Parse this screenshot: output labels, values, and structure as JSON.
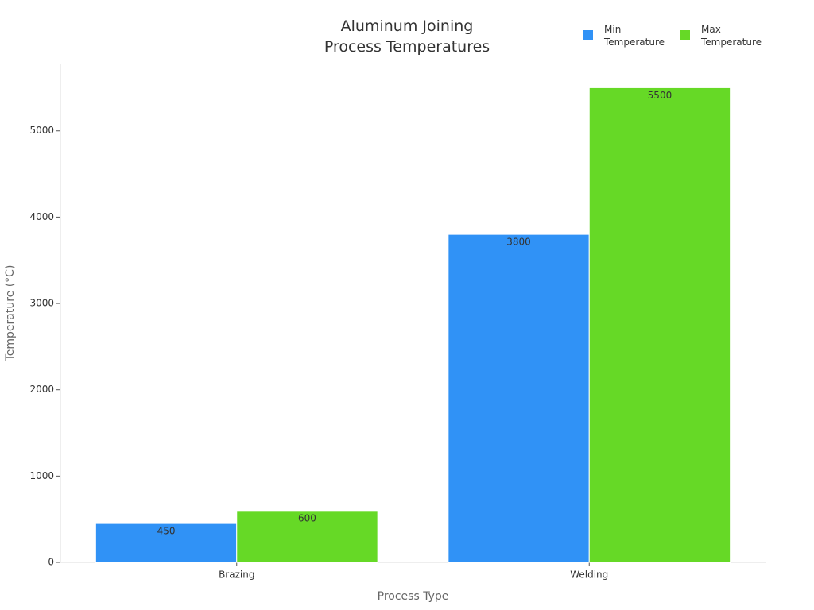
{
  "chart_data": {
    "type": "bar",
    "title": "Aluminum Joining\nProcess Temperatures",
    "x_label": "Process Type",
    "y_label": "Temperature (°C)",
    "categories": [
      "Brazing",
      "Welding"
    ],
    "series": [
      {
        "name": "Min Temperature",
        "color": "#3092f6",
        "values": [
          450,
          3800
        ]
      },
      {
        "name": "Max Temperature",
        "color": "#66d926",
        "values": [
          600,
          5500
        ]
      }
    ],
    "ylim": [
      0,
      5780
    ],
    "yticks": [
      0,
      1000,
      2000,
      3000,
      4000,
      5000
    ]
  }
}
